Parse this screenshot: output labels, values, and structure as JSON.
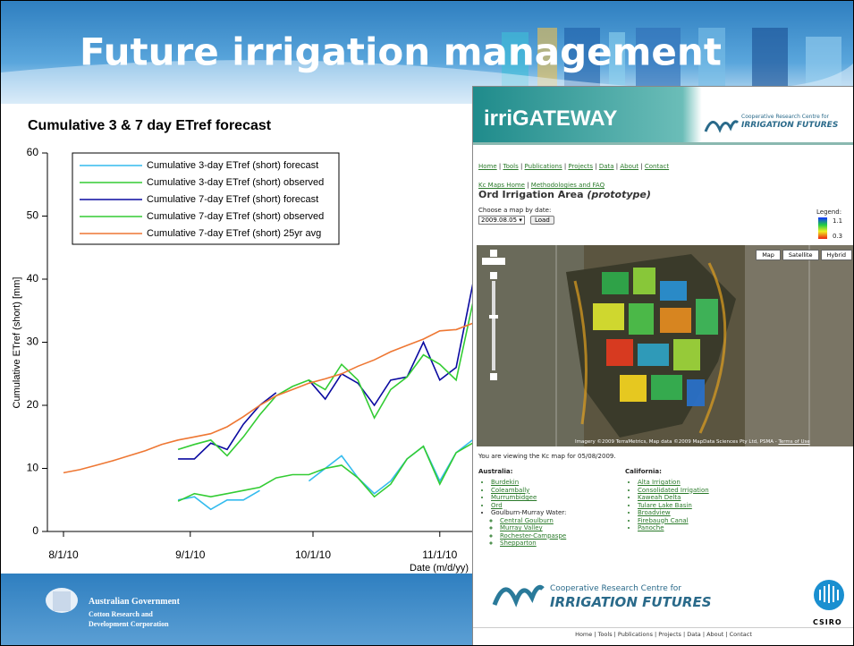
{
  "slide": {
    "title": "Future irrigation management",
    "footer_logo": [
      "Australian Government",
      "Cotton Research and",
      "Development Corporation"
    ]
  },
  "chart_data": {
    "type": "line",
    "title": "Cumulative 3 & 7 day ETref forecast",
    "x_label": "Date (m/d/yy)",
    "y_label": "Cumulative ETref (short) [mm]",
    "x": [
      "2010-08-01",
      "2010-08-05",
      "2010-08-09",
      "2010-08-13",
      "2010-08-17",
      "2010-08-21",
      "2010-08-25",
      "2010-08-29",
      "2010-09-02",
      "2010-09-06",
      "2010-09-10",
      "2010-09-14",
      "2010-09-18",
      "2010-09-22",
      "2010-09-26",
      "2010-09-30",
      "2010-10-04",
      "2010-10-08",
      "2010-10-12",
      "2010-10-16",
      "2010-10-20",
      "2010-10-24",
      "2010-10-28",
      "2010-11-01",
      "2010-11-05",
      "2010-11-09",
      "2010-11-13"
    ],
    "series": [
      {
        "name": "Cumulative 3-day ETref (short) forecast",
        "color": "#33bbee",
        "values": [
          null,
          null,
          null,
          null,
          null,
          null,
          null,
          5,
          5.5,
          3.5,
          5,
          5,
          6.5,
          null,
          null,
          8,
          10,
          12,
          8.5,
          6,
          8,
          11.5,
          13.5,
          8,
          12.5,
          14.5,
          14
        ]
      },
      {
        "name": "Cumulative 3-day ETref (short) observed",
        "color": "#33cc33",
        "values": [
          null,
          null,
          null,
          null,
          null,
          null,
          null,
          4.8,
          6,
          5.5,
          6,
          6.5,
          7,
          8.5,
          9,
          9,
          10,
          10.5,
          8.5,
          5.5,
          7.5,
          11.5,
          13.5,
          7.5,
          12.5,
          14,
          13.5
        ]
      },
      {
        "name": "Cumulative 7-day ETref (short) forecast",
        "color": "#0a0aa0",
        "values": [
          null,
          null,
          null,
          null,
          null,
          null,
          null,
          11.5,
          11.5,
          14,
          13,
          17,
          20,
          22,
          null,
          24,
          21,
          25,
          23.5,
          20,
          24,
          24.5,
          30,
          24,
          26,
          39,
          32
        ]
      },
      {
        "name": "Cumulative 7-day ETref (short) observed",
        "color": "#33cc33",
        "values": [
          null,
          null,
          null,
          null,
          null,
          null,
          null,
          13,
          13.8,
          14.5,
          12,
          15,
          18.5,
          21.5,
          23,
          24,
          22.5,
          26.5,
          24,
          18,
          22.5,
          24.5,
          28,
          26.5,
          24,
          36,
          34
        ]
      },
      {
        "name": "Cumulative 7-day ETref (short) 25yr avg",
        "color": "#ee7733",
        "values": [
          9.3,
          9.8,
          10.5,
          11.2,
          12,
          12.8,
          13.8,
          14.5,
          15,
          15.5,
          16.6,
          18.2,
          20,
          21.5,
          22.5,
          23.5,
          24.2,
          25,
          26.2,
          27.2,
          28.5,
          29.5,
          30.5,
          31.8,
          32,
          33,
          35
        ]
      }
    ],
    "xlim": [
      "2010-08-01",
      "2010-12-01"
    ],
    "xticks": [
      {
        "value": "2010-08-01",
        "label": "8/1/10"
      },
      {
        "value": "2010-09-01",
        "label": "9/1/10"
      },
      {
        "value": "2010-10-01",
        "label": "10/1/10"
      },
      {
        "value": "2010-11-01",
        "label": "11/1/10"
      }
    ],
    "ylim": [
      0,
      60
    ],
    "yticks": [
      0,
      10,
      20,
      30,
      40,
      50,
      60
    ],
    "legend": "upper left"
  },
  "webpage": {
    "logo": "irriGATEWAY",
    "crc_small": "Cooperative Research Centre for",
    "crc_big": "IRRIGATION FUTURES",
    "nav": [
      "Home",
      "Tools",
      "Publications",
      "Projects",
      "Data",
      "About",
      "Contact"
    ],
    "breadcrumb": [
      "Kc Maps Home",
      "Methodologies and FAQ"
    ],
    "heading": "Ord Irrigation Area",
    "heading_note": "(prototype)",
    "choose": "Choose a map by date:",
    "date_option": "2009.08.05",
    "load": "Load",
    "legend_label": "Legend:",
    "legend_max": "1.1",
    "legend_min": "0.3",
    "map_buttons": [
      "Map",
      "Satellite",
      "Hybrid"
    ],
    "attribution": "Imagery ©2009 TerraMetrics, Map data ©2009 MapData Sciences Pty Ltd, PSMA",
    "terms": "Terms of Use",
    "viewing": "You are viewing the Kc map for 05/08/2009.",
    "australia_title": "Australia:",
    "australia": [
      "Burdekin",
      "Coleambally",
      "Murrumbidgee",
      "Ord"
    ],
    "gmw": "Goulburn-Murray Water:",
    "gmw_areas": [
      "Central Goulburn",
      "Murray Valley",
      "Rochester-Campaspe",
      "Shepparton"
    ],
    "california_title": "California:",
    "california": [
      "Alta Irrigation",
      "Consolidated Irrigation",
      "Kaweah Delta",
      "Tulare Lake Basin",
      "Broadview",
      "Firebaugh Canal",
      "Panoche"
    ],
    "footer_crc_small": "Cooperative Research Centre for",
    "footer_crc_big": "IRRIGATION FUTURES",
    "csiro": "CSIRO",
    "footer_nav": "Home | Tools | Publications | Projects | Data | About | Contact"
  }
}
